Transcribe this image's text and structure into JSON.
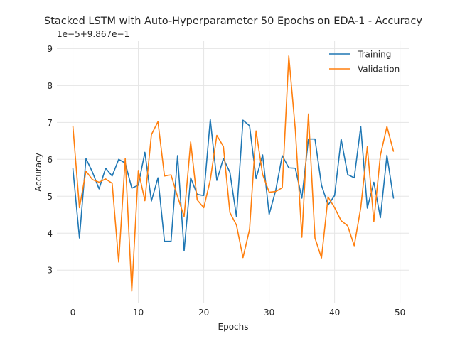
{
  "chart_data": {
    "type": "line",
    "title": "Stacked LSTM with Auto-Hyperparameter 50 Epochs on EDA-1 - Accuracy",
    "xlabel": "Epochs",
    "ylabel": "Accuracy",
    "y_offset_text": "1e−5+9.867e−1",
    "xlim": [
      -2.45,
      51.45
    ],
    "ylim": [
      2.1,
      9.2
    ],
    "x_ticks": [
      0,
      10,
      20,
      30,
      40,
      50
    ],
    "y_ticks": [
      3,
      4,
      5,
      6,
      7,
      8,
      9
    ],
    "grid": true,
    "legend_position": "top-right",
    "x": [
      0,
      1,
      2,
      3,
      4,
      5,
      6,
      7,
      8,
      9,
      10,
      11,
      12,
      13,
      14,
      15,
      16,
      17,
      18,
      19,
      20,
      21,
      22,
      23,
      24,
      25,
      26,
      27,
      28,
      29,
      30,
      31,
      32,
      33,
      34,
      35,
      36,
      37,
      38,
      39,
      40,
      41,
      42,
      43,
      44,
      45,
      46,
      47,
      48,
      49
    ],
    "series": [
      {
        "name": "Training",
        "color": "#1f77b4",
        "values": [
          5.75,
          3.87,
          6.02,
          5.65,
          5.2,
          5.76,
          5.55,
          6.0,
          5.9,
          5.22,
          5.3,
          6.19,
          4.87,
          5.5,
          3.78,
          3.78,
          6.1,
          3.52,
          5.5,
          5.05,
          5.02,
          7.08,
          5.43,
          6.02,
          5.65,
          4.45,
          7.06,
          6.91,
          5.48,
          6.12,
          4.51,
          5.16,
          6.1,
          5.77,
          5.76,
          4.95,
          6.55,
          6.55,
          5.3,
          4.76,
          5.02,
          6.55,
          5.59,
          5.5,
          6.89,
          4.68,
          5.38,
          4.42,
          6.11,
          4.95
        ]
      },
      {
        "name": "Validation",
        "color": "#ff7f0e",
        "values": [
          6.9,
          4.69,
          5.68,
          5.45,
          5.38,
          5.47,
          5.35,
          3.22,
          6.02,
          2.43,
          5.7,
          4.88,
          6.67,
          7.02,
          5.55,
          5.58,
          4.99,
          4.45,
          6.47,
          4.9,
          4.69,
          5.44,
          6.65,
          6.35,
          4.56,
          4.22,
          3.34,
          4.1,
          6.77,
          5.59,
          5.11,
          5.13,
          5.23,
          8.8,
          6.8,
          3.89,
          7.23,
          3.87,
          3.33,
          4.98,
          4.69,
          4.34,
          4.2,
          3.66,
          4.69,
          6.34,
          4.32,
          6.11,
          6.89,
          6.22
        ]
      }
    ]
  }
}
